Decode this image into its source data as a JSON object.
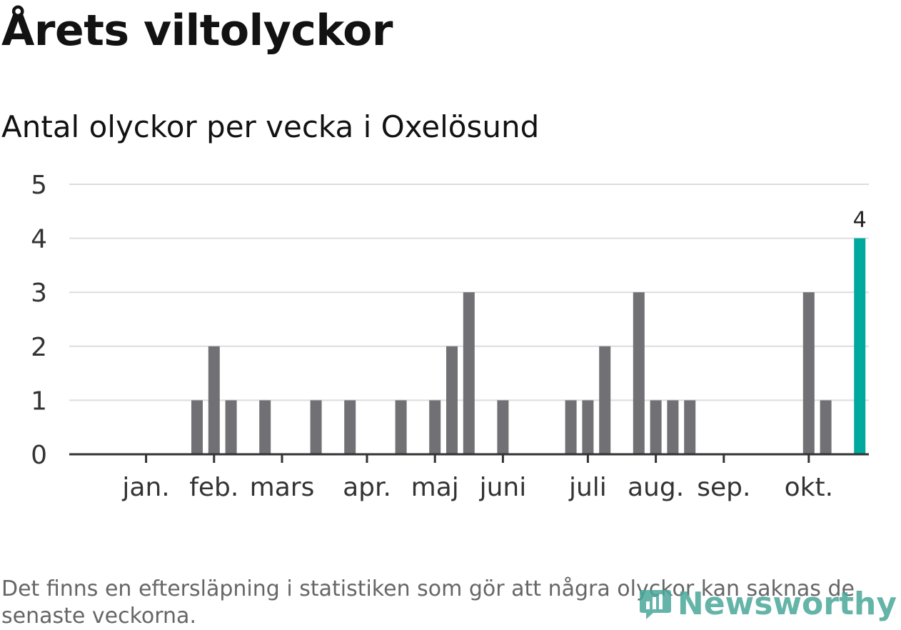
{
  "header": {
    "title": "Årets viltolyckor",
    "subtitle": "Antal olyckor per vecka i Oxelösund"
  },
  "chart_data": {
    "type": "bar",
    "title": "Årets viltolyckor",
    "subtitle": "Antal olyckor per vecka i Oxelösund",
    "xlabel": "",
    "ylabel": "",
    "ylim": [
      0,
      5
    ],
    "yticks": [
      0,
      1,
      2,
      3,
      4,
      5
    ],
    "grid": true,
    "week_count": 45,
    "weeks": [
      1,
      2,
      3,
      4,
      5,
      6,
      7,
      8,
      9,
      10,
      11,
      12,
      13,
      14,
      15,
      16,
      17,
      18,
      19,
      20,
      21,
      22,
      23,
      24,
      25,
      26,
      27,
      28,
      29,
      30,
      31,
      32,
      33,
      34,
      35,
      36,
      37,
      38,
      39,
      40,
      41,
      42,
      43,
      44,
      45
    ],
    "values": [
      0,
      0,
      0,
      0,
      0,
      1,
      2,
      1,
      0,
      1,
      0,
      0,
      1,
      0,
      1,
      0,
      0,
      1,
      0,
      1,
      2,
      3,
      0,
      1,
      0,
      0,
      0,
      1,
      1,
      2,
      0,
      3,
      1,
      1,
      1,
      0,
      0,
      0,
      0,
      0,
      0,
      3,
      1,
      0,
      4
    ],
    "highlight_index": 44,
    "highlight_label": "4",
    "colors": {
      "bar": "#707075",
      "highlight": "#00a99d",
      "axis": "#333333",
      "grid": "#dddddd"
    },
    "month_labels": [
      {
        "label": "jan.",
        "week": 3
      },
      {
        "label": "feb.",
        "week": 7
      },
      {
        "label": "mars",
        "week": 11
      },
      {
        "label": "apr.",
        "week": 16
      },
      {
        "label": "maj",
        "week": 20
      },
      {
        "label": "juni",
        "week": 24
      },
      {
        "label": "juli",
        "week": 29
      },
      {
        "label": "aug.",
        "week": 33
      },
      {
        "label": "sep.",
        "week": 37
      },
      {
        "label": "okt.",
        "week": 42
      }
    ]
  },
  "footer": {
    "note": "Det finns en eftersläpning i statistiken som gör att några olyckor kan saknas de senaste veckorna.",
    "logo_text": "Newsworthy"
  }
}
